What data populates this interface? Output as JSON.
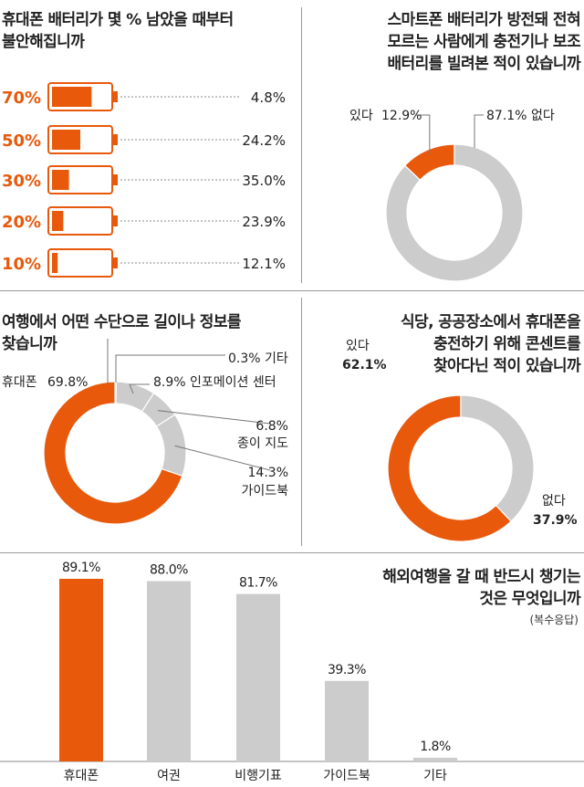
{
  "colors": {
    "accent": "#e8590c",
    "gray": "#cccccc",
    "line": "#777777"
  },
  "chart_data": [
    {
      "type": "bar",
      "title": "휴대폰 배터리가 몇 % 남았을 때부터\n불안해집니까",
      "categories": [
        "70%",
        "50%",
        "30%",
        "20%",
        "10%"
      ],
      "values": [
        4.8,
        24.2,
        35.0,
        23.9,
        12.1
      ],
      "value_labels": [
        "4.8%",
        "24.2%",
        "35.0%",
        "23.9%",
        "12.1%"
      ],
      "fill_levels": [
        70,
        50,
        30,
        20,
        10
      ],
      "icon": "battery-icon"
    },
    {
      "type": "pie",
      "title": "스마트폰 배터리가 방전돼 전혀\n모르는 사람에게 충전기나 보조\n배터리를 빌려본 적이 있습니까",
      "slices": [
        {
          "label": "있다",
          "value": 12.9,
          "value_label": "12.9%",
          "color": "#e8590c"
        },
        {
          "label": "없다",
          "value": 87.1,
          "value_label": "87.1%",
          "color": "#cccccc"
        }
      ]
    },
    {
      "type": "pie",
      "title": "여행에서 어떤 수단으로 길이나 정보를\n찾습니까",
      "slices": [
        {
          "label": "휴대폰",
          "value": 69.8,
          "value_label": "69.8%",
          "color": "#e8590c"
        },
        {
          "label": "기타",
          "value": 0.3,
          "value_label": "0.3%",
          "color": "#cccccc"
        },
        {
          "label": "인포메이션 센터",
          "value": 8.9,
          "value_label": "8.9%",
          "color": "#cccccc"
        },
        {
          "label": "종이 지도",
          "value": 6.8,
          "value_label": "6.8%",
          "color": "#cccccc"
        },
        {
          "label": "가이드북",
          "value": 14.3,
          "value_label": "14.3%",
          "color": "#cccccc"
        }
      ]
    },
    {
      "type": "pie",
      "title": "식당, 공공장소에서 휴대폰을\n충전하기 위해 콘센트를\n찾아다닌 적이 있습니까",
      "slices": [
        {
          "label": "있다",
          "value": 62.1,
          "value_label": "62.1%",
          "color": "#e8590c"
        },
        {
          "label": "없다",
          "value": 37.9,
          "value_label": "37.9%",
          "color": "#cccccc"
        }
      ]
    },
    {
      "type": "bar",
      "title": "해외여행을 갈 때 반드시 챙기는\n것은 무엇입니까",
      "subtitle": "(복수응답)",
      "categories": [
        "휴대폰",
        "여권",
        "비행기표",
        "가이드북",
        "기타"
      ],
      "values": [
        89.1,
        88.0,
        81.7,
        39.3,
        1.8
      ],
      "value_labels": [
        "89.1%",
        "88.0%",
        "81.7%",
        "39.3%",
        "1.8%"
      ],
      "highlight_index": 0
    }
  ]
}
